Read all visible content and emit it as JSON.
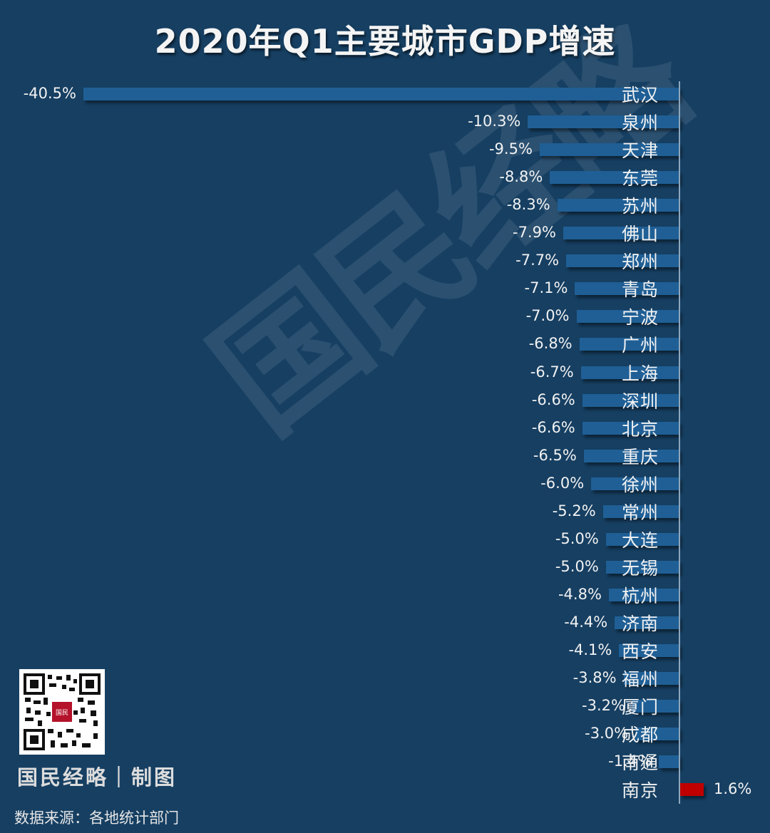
{
  "header": {
    "title": "2020年Q1主要城市GDP增速"
  },
  "watermark": {
    "text": "国民经略"
  },
  "footer": {
    "brand": "国民经略｜制图",
    "source": "数据来源：各地统计部门",
    "qr_icon": "qr-code-icon",
    "qr_badge_text": "国民经略"
  },
  "colors": {
    "background": "#163f62",
    "negative_bar": "#1f5f95",
    "positive_bar": "#c00000",
    "axis": "#8ea7bd"
  },
  "chart_data": {
    "type": "bar",
    "orientation": "horizontal",
    "title": "2020年Q1主要城市GDP增速",
    "xlabel": "",
    "ylabel": "",
    "unit": "%",
    "grid": false,
    "legend": null,
    "categories": [
      "武汉",
      "泉州",
      "天津",
      "东莞",
      "苏州",
      "佛山",
      "郑州",
      "青岛",
      "宁波",
      "广州",
      "上海",
      "深圳",
      "北京",
      "重庆",
      "徐州",
      "常州",
      "大连",
      "无锡",
      "杭州",
      "济南",
      "西安",
      "福州",
      "厦门",
      "成都",
      "南通",
      "南京"
    ],
    "values": [
      -40.5,
      -10.3,
      -9.5,
      -8.8,
      -8.3,
      -7.9,
      -7.7,
      -7.1,
      -7.0,
      -6.8,
      -6.7,
      -6.6,
      -6.6,
      -6.5,
      -6.0,
      -5.2,
      -5.0,
      -5.0,
      -4.8,
      -4.4,
      -4.1,
      -3.8,
      -3.2,
      -3.0,
      -1.4,
      1.6
    ],
    "labels": [
      "-40.5%",
      "-10.3%",
      "-9.5%",
      "-8.8%",
      "-8.3%",
      "-7.9%",
      "-7.7%",
      "-7.1%",
      "-7.0%",
      "-6.8%",
      "-6.7%",
      "-6.6%",
      "-6.6%",
      "-6.5%",
      "-6.0%",
      "-5.2%",
      "-5.0%",
      "-5.0%",
      "-4.8%",
      "-4.4%",
      "-4.1%",
      "-3.8%",
      "-3.2%",
      "-3.0%",
      "-1.4%",
      "1.6%"
    ],
    "xlim": [
      -40.5,
      1.6
    ]
  }
}
